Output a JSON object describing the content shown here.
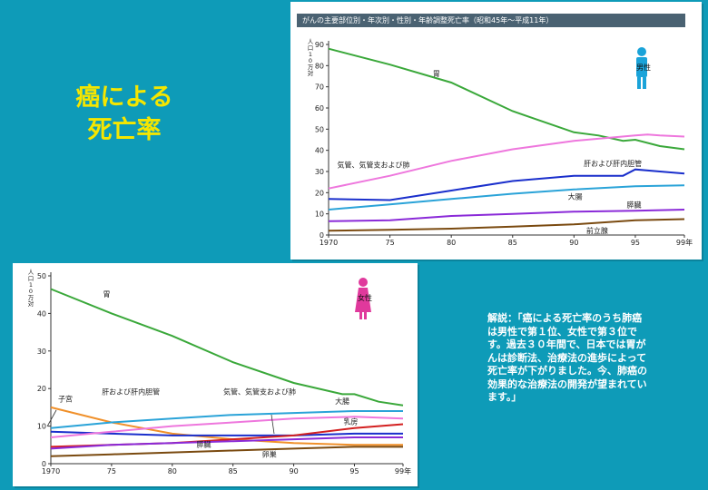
{
  "slide": {
    "title_line1": "癌による",
    "title_line2": "死亡率",
    "note": "解説：「癌による死亡率のうち肺癌は男性で第１位、女性で第３位です。過去３０年間で、日本では胃がんは診断法、治療法の進歩によって死亡率が下がりました。今、肺癌の効果的な治療法の開発が望まれています。」"
  },
  "colors": {
    "background": "#0e9bb8",
    "title": "#f5e600",
    "male_figure": "#1aa3d9",
    "female_figure": "#e0399c",
    "stomach": "#3aa83a",
    "lung": "#ee77dd",
    "liver": "#1a2fcc",
    "colon": "#2aa3d8",
    "pancreas": "#8a2ad8",
    "prostate": "#7a4a10",
    "uterus": "#f0902a",
    "breast": "#d32020",
    "ovary": "#7a4a10"
  },
  "chart_data": [
    {
      "type": "line",
      "id": "male",
      "title": "がんの主要部位別・年次別・性別・年齢調整死亡率（昭和45年～平成11年）",
      "ylabel": "人口10万対",
      "legend_label": "男性",
      "x_ticks": [
        "1970",
        "75",
        "80",
        "85",
        "90",
        "95",
        "99年"
      ],
      "x_tick_values": [
        1970,
        1975,
        1980,
        1985,
        1990,
        1995,
        1999
      ],
      "y_ticks": [
        0,
        10,
        20,
        30,
        40,
        50,
        60,
        70,
        80,
        90
      ],
      "xlim": [
        1970,
        1999
      ],
      "ylim": [
        0,
        90
      ],
      "series": [
        {
          "name": "胃",
          "color_key": "stomach",
          "label_at": [
            1978.5,
            75
          ],
          "x": [
            1970,
            1975,
            1980,
            1985,
            1990,
            1992,
            1994,
            1995,
            1997,
            1999
          ],
          "y": [
            88,
            80.5,
            72,
            58.5,
            48.5,
            47,
            44.5,
            45,
            42,
            40.5
          ]
        },
        {
          "name": "気管、気管支および肺",
          "color_key": "lung",
          "label_at": [
            1970.7,
            32
          ],
          "x": [
            1970,
            1975,
            1980,
            1985,
            1990,
            1995,
            1996,
            1997,
            1999
          ],
          "y": [
            22,
            28,
            35,
            40.5,
            44.5,
            47,
            47.5,
            47,
            46.5
          ]
        },
        {
          "name": "肝および肝内胆管",
          "color_key": "liver",
          "label_at": [
            1990.8,
            32.5
          ],
          "x": [
            1970,
            1975,
            1980,
            1985,
            1990,
            1994,
            1995,
            1997,
            1999
          ],
          "y": [
            17,
            16.5,
            21,
            25.5,
            28,
            28,
            31,
            30,
            29
          ]
        },
        {
          "name": "大腸",
          "color_key": "colon",
          "label_at": [
            1989.5,
            17
          ],
          "x": [
            1970,
            1975,
            1980,
            1985,
            1990,
            1995,
            1999
          ],
          "y": [
            12,
            14.5,
            17,
            19.5,
            21.5,
            23,
            23.5
          ]
        },
        {
          "name": "膵臓",
          "color_key": "pancreas",
          "label_at": [
            1994.3,
            13
          ],
          "x": [
            1970,
            1975,
            1980,
            1985,
            1990,
            1995,
            1999
          ],
          "y": [
            6.5,
            7,
            9,
            10,
            11,
            11.5,
            12
          ]
        },
        {
          "name": "前立腺",
          "color_key": "prostate",
          "label_at": [
            1991,
            0.8
          ],
          "x": [
            1970,
            1975,
            1980,
            1985,
            1990,
            1995,
            1999
          ],
          "y": [
            2,
            2.5,
            3,
            4,
            5,
            7,
            7.5
          ]
        }
      ]
    },
    {
      "type": "line",
      "id": "female",
      "ylabel": "人口10万対",
      "legend_label": "女性",
      "x_ticks": [
        "1970",
        "75",
        "80",
        "85",
        "90",
        "95",
        "99年"
      ],
      "x_tick_values": [
        1970,
        1975,
        1980,
        1985,
        1990,
        1995,
        1999
      ],
      "y_ticks": [
        0,
        10,
        20,
        30,
        40,
        50
      ],
      "xlim": [
        1970,
        1999
      ],
      "ylim": [
        0,
        50
      ],
      "series": [
        {
          "name": "胃",
          "color_key": "stomach",
          "label_at": [
            1974.3,
            44.5
          ],
          "x": [
            1970,
            1975,
            1980,
            1985,
            1990,
            1994,
            1995,
            1997,
            1999
          ],
          "y": [
            46.5,
            40,
            34,
            27,
            21.5,
            18.5,
            18.5,
            16.5,
            15.5
          ]
        },
        {
          "name": "子宮",
          "color_key": "uterus",
          "label_at": [
            1970.6,
            16.5
          ],
          "x": [
            1970,
            1975,
            1980,
            1985,
            1990,
            1995,
            1999
          ],
          "y": [
            15,
            11,
            8,
            6.5,
            5.5,
            5,
            5
          ]
        },
        {
          "name": "肝および肝内胆管",
          "color_key": "liver",
          "label_at": [
            1974.2,
            18.5
          ],
          "x": [
            1970,
            1975,
            1980,
            1985,
            1990,
            1995,
            1999
          ],
          "y": [
            8.5,
            8,
            7.5,
            7.5,
            7.5,
            8,
            8
          ]
        },
        {
          "name": "気管、気管支および肺",
          "color_key": "lung",
          "label_at": [
            1984.2,
            18.5
          ],
          "x": [
            1970,
            1975,
            1980,
            1985,
            1990,
            1995,
            1999
          ],
          "y": [
            7,
            8.5,
            10,
            11,
            12,
            12.5,
            12
          ]
        },
        {
          "name": "大腸",
          "color_key": "colon",
          "label_at": [
            1993.4,
            16
          ],
          "x": [
            1970,
            1975,
            1980,
            1985,
            1990,
            1995,
            1999
          ],
          "y": [
            9.5,
            11,
            12,
            13,
            13.5,
            14,
            14
          ]
        },
        {
          "name": "乳房",
          "color_key": "breast",
          "label_at": [
            1994.1,
            10.5
          ],
          "x": [
            1970,
            1975,
            1980,
            1985,
            1990,
            1995,
            1999
          ],
          "y": [
            4.5,
            5,
            5.5,
            6.5,
            7.5,
            9.5,
            10.5
          ]
        },
        {
          "name": "膵臓",
          "color_key": "pancreas",
          "label_at": [
            1982,
            4.5
          ],
          "x": [
            1970,
            1975,
            1980,
            1985,
            1990,
            1995,
            1999
          ],
          "y": [
            4,
            5,
            5.5,
            6,
            6.5,
            7,
            7
          ]
        },
        {
          "name": "卵巣",
          "color_key": "ovary",
          "label_at": [
            1987.4,
            1.8
          ],
          "x": [
            1970,
            1975,
            1980,
            1985,
            1990,
            1995,
            1999
          ],
          "y": [
            2,
            2.5,
            3,
            3.5,
            4,
            4.5,
            4.5
          ]
        }
      ]
    }
  ]
}
